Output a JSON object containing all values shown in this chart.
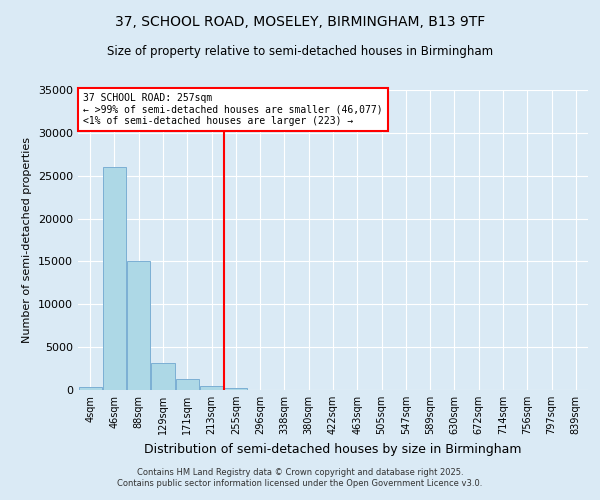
{
  "title_line1": "37, SCHOOL ROAD, MOSELEY, BIRMINGHAM, B13 9TF",
  "title_line2": "Size of property relative to semi-detached houses in Birmingham",
  "xlabel": "Distribution of semi-detached houses by size in Birmingham",
  "ylabel": "Number of semi-detached properties",
  "bin_labels": [
    "4sqm",
    "46sqm",
    "88sqm",
    "129sqm",
    "171sqm",
    "213sqm",
    "255sqm",
    "296sqm",
    "338sqm",
    "380sqm",
    "422sqm",
    "463sqm",
    "505sqm",
    "547sqm",
    "589sqm",
    "630sqm",
    "672sqm",
    "714sqm",
    "756sqm",
    "797sqm",
    "839sqm"
  ],
  "bar_values": [
    400,
    26000,
    15000,
    3100,
    1300,
    500,
    200,
    0,
    0,
    0,
    0,
    0,
    0,
    0,
    0,
    0,
    0,
    0,
    0,
    0,
    0
  ],
  "bar_color": "#add8e6",
  "bar_edge_color": "#7bafd4",
  "property_bin_index": 6,
  "annotation_title": "37 SCHOOL ROAD: 257sqm",
  "annotation_line2": "← >99% of semi-detached houses are smaller (46,077)",
  "annotation_line3": "<1% of semi-detached houses are larger (223) →",
  "vline_color": "red",
  "annotation_box_color": "white",
  "annotation_box_edge": "red",
  "ylim": [
    0,
    35000
  ],
  "yticks": [
    0,
    5000,
    10000,
    15000,
    20000,
    25000,
    30000,
    35000
  ],
  "footer_line1": "Contains HM Land Registry data © Crown copyright and database right 2025.",
  "footer_line2": "Contains public sector information licensed under the Open Government Licence v3.0.",
  "background_color": "#daeaf5",
  "plot_bg_color": "#daeaf5"
}
